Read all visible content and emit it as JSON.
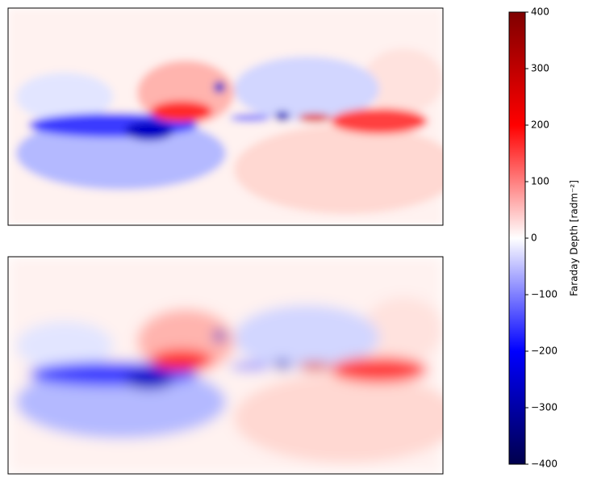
{
  "chart_data": {
    "type": "heatmap",
    "colorbar_label": "Faraday Depth [radm⁻²]",
    "clim": [
      -400,
      400
    ],
    "colormap": [
      "#00004c",
      "#0000ff",
      "#ffffff",
      "#ff0000",
      "#7f0000"
    ],
    "cticks": [
      {
        "value": -400,
        "label": "−400"
      },
      {
        "value": -300,
        "label": "−300"
      },
      {
        "value": -200,
        "label": "−200"
      },
      {
        "value": -100,
        "label": "−100"
      },
      0,
      100,
      200,
      300,
      400
    ]
  }
}
